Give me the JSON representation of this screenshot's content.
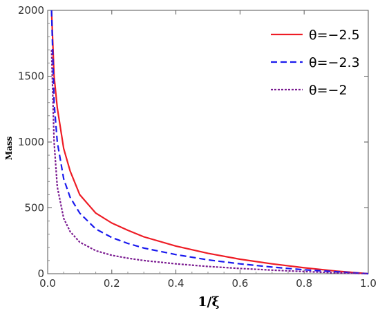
{
  "chart_data": {
    "type": "line",
    "xlabel": "1/ξ",
    "ylabel": "Mass",
    "xlim": [
      0,
      1
    ],
    "ylim": [
      0,
      2000
    ],
    "x_ticks": [
      "0.0",
      "0.2",
      "0.4",
      "0.6",
      "0.8",
      "1.0"
    ],
    "y_ticks": [
      "0",
      "500",
      "1000",
      "1500",
      "2000"
    ],
    "grid": false,
    "legend_position": "top-right",
    "x": [
      0.012,
      0.02,
      0.03,
      0.05,
      0.07,
      0.1,
      0.15,
      0.2,
      0.25,
      0.3,
      0.4,
      0.5,
      0.6,
      0.7,
      0.8,
      0.9,
      1.0
    ],
    "series": [
      {
        "name": "θ=−2.5",
        "color": "#ee1c25",
        "dash": "solid",
        "values": [
          2000,
          1500,
          1260,
          950,
          780,
          600,
          460,
          385,
          330,
          280,
          210,
          155,
          110,
          75,
          45,
          20,
          0
        ]
      },
      {
        "name": "θ=−2.3",
        "color": "#1a1aee",
        "dash": "dashed",
        "values": [
          2000,
          1300,
          1000,
          720,
          580,
          460,
          340,
          275,
          230,
          195,
          145,
          105,
          75,
          50,
          30,
          15,
          0
        ]
      },
      {
        "name": "θ=−2",
        "color": "#7a1a90",
        "dash": "dotted",
        "values": [
          1700,
          1000,
          660,
          420,
          320,
          240,
          175,
          140,
          118,
          100,
          75,
          55,
          40,
          27,
          16,
          7,
          0
        ]
      }
    ]
  }
}
